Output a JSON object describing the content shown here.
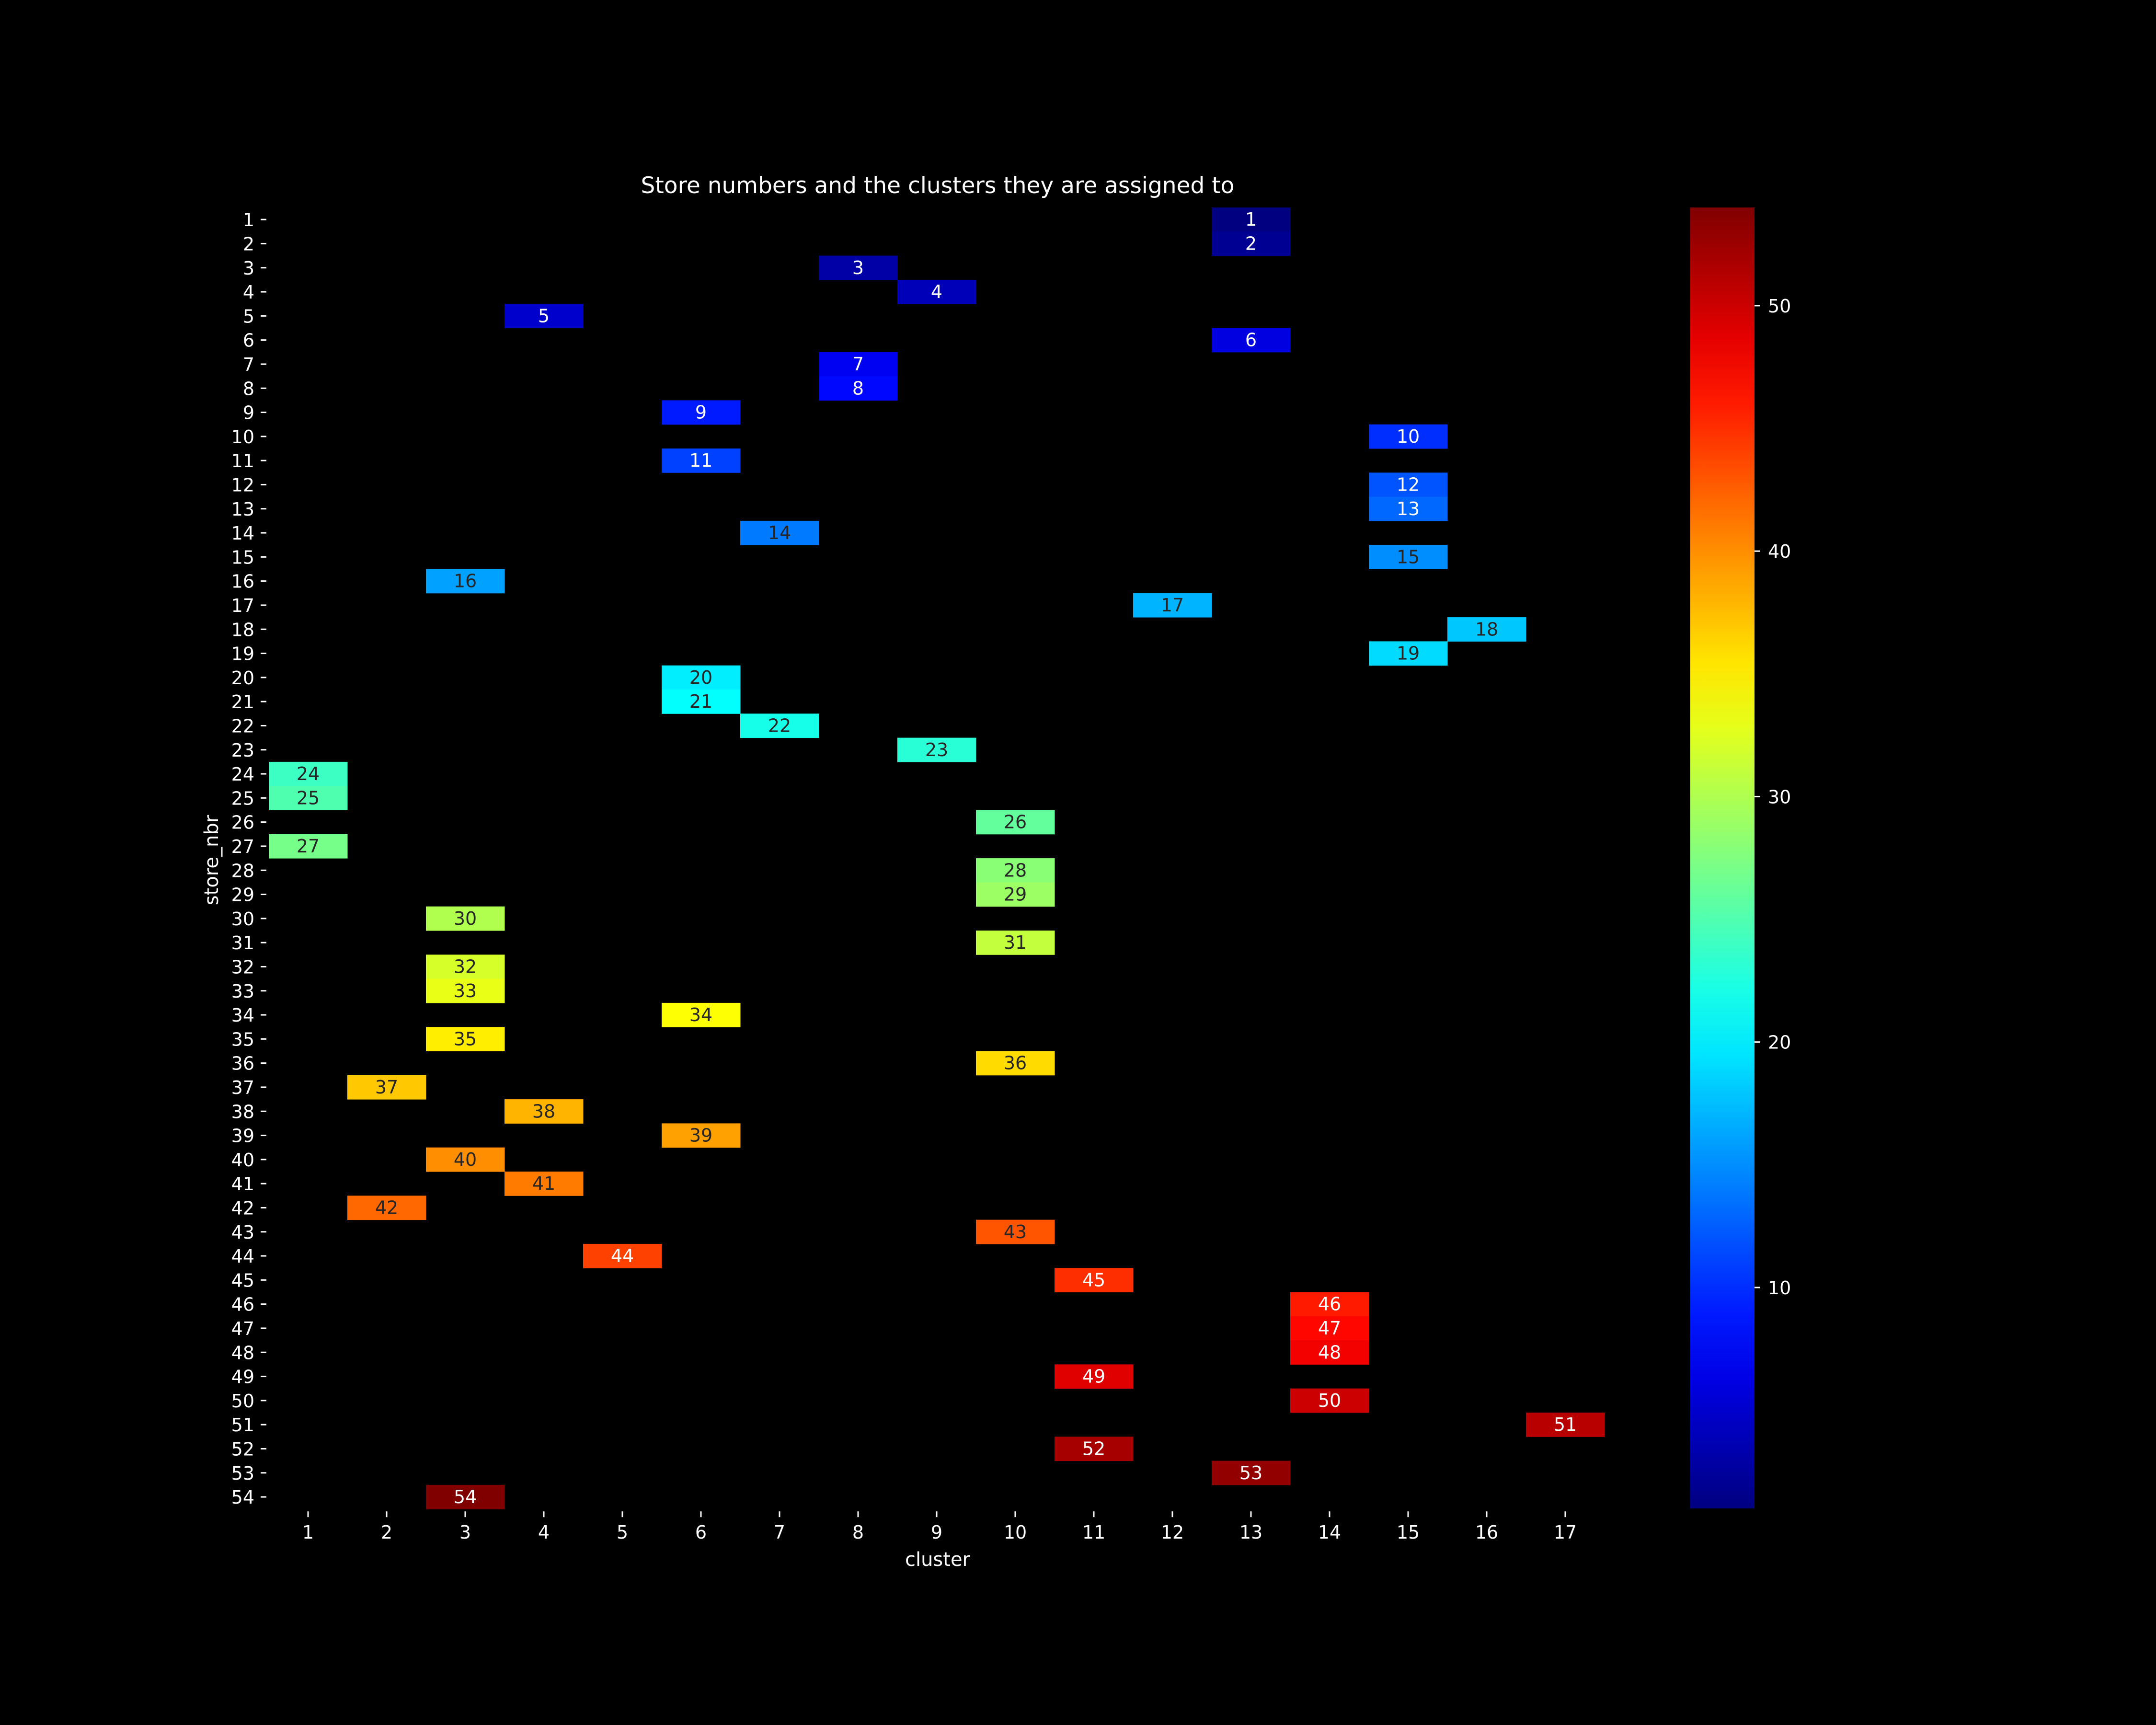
{
  "chart_data": {
    "type": "heatmap",
    "title": "Store numbers and the clusters they are assigned to",
    "xlabel": "cluster",
    "ylabel": "store_nbr",
    "x_categories": [
      1,
      2,
      3,
      4,
      5,
      6,
      7,
      8,
      9,
      10,
      11,
      12,
      13,
      14,
      15,
      16,
      17
    ],
    "y_categories": [
      1,
      2,
      3,
      4,
      5,
      6,
      7,
      8,
      9,
      10,
      11,
      12,
      13,
      14,
      15,
      16,
      17,
      18,
      19,
      20,
      21,
      22,
      23,
      24,
      25,
      26,
      27,
      28,
      29,
      30,
      31,
      32,
      33,
      34,
      35,
      36,
      37,
      38,
      39,
      40,
      41,
      42,
      43,
      44,
      45,
      46,
      47,
      48,
      49,
      50,
      51,
      52,
      53,
      54
    ],
    "cells": [
      {
        "store": 1,
        "cluster": 13
      },
      {
        "store": 2,
        "cluster": 13
      },
      {
        "store": 3,
        "cluster": 8
      },
      {
        "store": 4,
        "cluster": 9
      },
      {
        "store": 5,
        "cluster": 4
      },
      {
        "store": 6,
        "cluster": 13
      },
      {
        "store": 7,
        "cluster": 8
      },
      {
        "store": 8,
        "cluster": 8
      },
      {
        "store": 9,
        "cluster": 6
      },
      {
        "store": 10,
        "cluster": 15
      },
      {
        "store": 11,
        "cluster": 6
      },
      {
        "store": 12,
        "cluster": 15
      },
      {
        "store": 13,
        "cluster": 15
      },
      {
        "store": 14,
        "cluster": 7
      },
      {
        "store": 15,
        "cluster": 15
      },
      {
        "store": 16,
        "cluster": 3
      },
      {
        "store": 17,
        "cluster": 12
      },
      {
        "store": 18,
        "cluster": 16
      },
      {
        "store": 19,
        "cluster": 15
      },
      {
        "store": 20,
        "cluster": 6
      },
      {
        "store": 21,
        "cluster": 6
      },
      {
        "store": 22,
        "cluster": 7
      },
      {
        "store": 23,
        "cluster": 9
      },
      {
        "store": 24,
        "cluster": 1
      },
      {
        "store": 25,
        "cluster": 1
      },
      {
        "store": 26,
        "cluster": 10
      },
      {
        "store": 27,
        "cluster": 1
      },
      {
        "store": 28,
        "cluster": 10
      },
      {
        "store": 29,
        "cluster": 10
      },
      {
        "store": 30,
        "cluster": 3
      },
      {
        "store": 31,
        "cluster": 10
      },
      {
        "store": 32,
        "cluster": 3
      },
      {
        "store": 33,
        "cluster": 3
      },
      {
        "store": 34,
        "cluster": 6
      },
      {
        "store": 35,
        "cluster": 3
      },
      {
        "store": 36,
        "cluster": 10
      },
      {
        "store": 37,
        "cluster": 2
      },
      {
        "store": 38,
        "cluster": 4
      },
      {
        "store": 39,
        "cluster": 6
      },
      {
        "store": 40,
        "cluster": 3
      },
      {
        "store": 41,
        "cluster": 4
      },
      {
        "store": 42,
        "cluster": 2
      },
      {
        "store": 43,
        "cluster": 10
      },
      {
        "store": 44,
        "cluster": 5
      },
      {
        "store": 45,
        "cluster": 11
      },
      {
        "store": 46,
        "cluster": 14
      },
      {
        "store": 47,
        "cluster": 14
      },
      {
        "store": 48,
        "cluster": 14
      },
      {
        "store": 49,
        "cluster": 11
      },
      {
        "store": 50,
        "cluster": 14
      },
      {
        "store": 51,
        "cluster": 17
      },
      {
        "store": 52,
        "cluster": 11
      },
      {
        "store": 53,
        "cluster": 13
      },
      {
        "store": 54,
        "cluster": 3
      }
    ],
    "colormap": "jet",
    "color_range": [
      1,
      54
    ],
    "colorbar_ticks": [
      10,
      20,
      30,
      40,
      50
    ],
    "background": "#000000",
    "text_color": "#ffffff"
  }
}
